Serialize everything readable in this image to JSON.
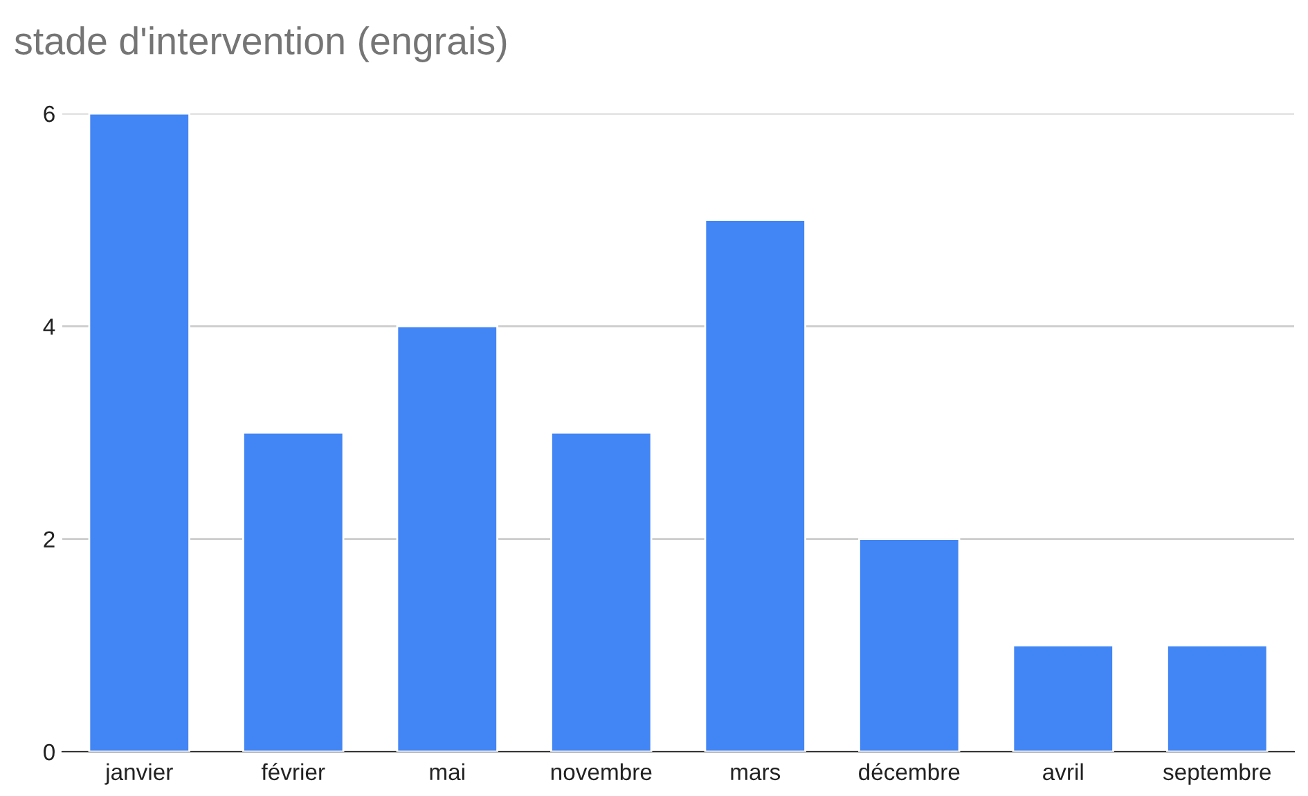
{
  "chart_data": {
    "type": "bar",
    "title": "stade d'intervention (engrais)",
    "categories": [
      "janvier",
      "février",
      "mai",
      "novembre",
      "mars",
      "décembre",
      "avril",
      "septembre"
    ],
    "values": [
      6,
      3,
      4,
      3,
      5,
      2,
      1,
      1
    ],
    "color": "#4285f4",
    "ylim": [
      0,
      6
    ],
    "yticks": [
      0,
      2,
      4,
      6
    ],
    "grid": "y"
  }
}
